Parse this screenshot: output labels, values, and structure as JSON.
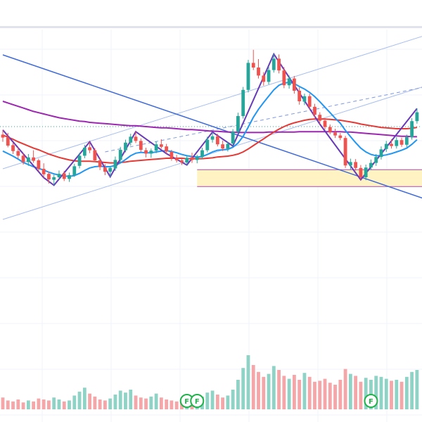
{
  "chart_data": {
    "type": "candlestick",
    "colors": {
      "up": "#26a69a",
      "down": "#ef5350",
      "vol_up": "#8fd3c6",
      "vol_down": "#f5a6a8",
      "ma_fast": "#2196f3",
      "ma_mid": "#e53935",
      "ma_slow": "#9c27b0",
      "zigzag": "#673ab7",
      "trend": "#3f6ad8",
      "channel": "#a8bef0",
      "zone_fill": "#fff3c4",
      "zone_border": "#a64ca6",
      "marker": "#22b24c"
    },
    "price_scale": [
      0,
      100
    ],
    "volume_scale": [
      0,
      100
    ],
    "price_reference_level": 70,
    "candles": [
      [
        68.1,
        69.2,
        66.4,
        67.4
      ],
      [
        67.4,
        68.5,
        65.1,
        65.5
      ],
      [
        65.6,
        66.2,
        63.5,
        64.2
      ],
      [
        64.2,
        65.1,
        62.4,
        63.1
      ],
      [
        63.1,
        63.7,
        61.0,
        61.6
      ],
      [
        61.6,
        63.5,
        60.7,
        62.7
      ],
      [
        62.7,
        64.4,
        61.4,
        61.9
      ],
      [
        62.0,
        62.4,
        59.4,
        60.0
      ],
      [
        60.0,
        61.3,
        57.9,
        58.7
      ],
      [
        58.8,
        59.3,
        56.5,
        57.5
      ],
      [
        57.4,
        58.6,
        56.1,
        58.0
      ],
      [
        58.0,
        59.6,
        57.5,
        58.8
      ],
      [
        58.9,
        59.5,
        57.1,
        57.6
      ],
      [
        57.6,
        59.1,
        56.9,
        58.5
      ],
      [
        58.5,
        61.2,
        58.1,
        60.6
      ],
      [
        60.7,
        63.8,
        60.1,
        63.1
      ],
      [
        63.1,
        65.7,
        62.5,
        65.0
      ],
      [
        65.1,
        66.4,
        63.7,
        64.4
      ],
      [
        64.4,
        64.9,
        61.6,
        62.0
      ],
      [
        62.0,
        62.6,
        59.7,
        60.4
      ],
      [
        60.3,
        61.1,
        58.5,
        59.3
      ],
      [
        59.3,
        60.6,
        58.1,
        60.2
      ],
      [
        60.1,
        62.9,
        59.5,
        62.1
      ],
      [
        62.1,
        65.2,
        61.4,
        64.5
      ],
      [
        64.4,
        66.9,
        63.9,
        66.2
      ],
      [
        66.2,
        68.3,
        65.5,
        67.6
      ],
      [
        67.6,
        68.8,
        66.1,
        66.6
      ],
      [
        66.6,
        67.2,
        64.0,
        64.5
      ],
      [
        64.4,
        65.0,
        62.7,
        63.6
      ],
      [
        63.6,
        64.8,
        62.6,
        64.3
      ],
      [
        64.3,
        66.5,
        63.7,
        65.8
      ],
      [
        65.8,
        67.0,
        64.8,
        65.2
      ],
      [
        65.3,
        65.9,
        63.6,
        64.1
      ],
      [
        64.0,
        64.5,
        61.9,
        62.6
      ],
      [
        62.6,
        63.3,
        61.5,
        62.0
      ],
      [
        62.0,
        62.5,
        60.9,
        61.5
      ],
      [
        61.5,
        63.2,
        60.9,
        62.6
      ],
      [
        62.7,
        63.8,
        61.4,
        62.1
      ],
      [
        62.1,
        63.3,
        61.3,
        62.8
      ],
      [
        62.8,
        65.0,
        62.3,
        64.4
      ],
      [
        64.4,
        67.6,
        63.9,
        66.9
      ],
      [
        66.9,
        68.7,
        66.2,
        67.7
      ],
      [
        67.7,
        68.3,
        65.3,
        65.8
      ],
      [
        65.8,
        66.7,
        64.2,
        64.8
      ],
      [
        64.8,
        66.4,
        64.1,
        65.9
      ],
      [
        66.0,
        69.4,
        65.4,
        68.8
      ],
      [
        68.8,
        73.3,
        68.2,
        72.5
      ],
      [
        72.5,
        79.4,
        71.9,
        78.7
      ],
      [
        78.7,
        85.8,
        78.1,
        85.1
      ],
      [
        85.1,
        88.2,
        83.4,
        84.0
      ],
      [
        84.0,
        86.0,
        81.4,
        82.1
      ],
      [
        82.1,
        82.9,
        79.7,
        80.6
      ],
      [
        80.6,
        84.2,
        80.0,
        83.4
      ],
      [
        83.4,
        87.2,
        82.8,
        86.1
      ],
      [
        86.1,
        87.1,
        82.6,
        83.3
      ],
      [
        83.3,
        84.1,
        79.1,
        79.8
      ],
      [
        79.8,
        82.1,
        79.0,
        81.4
      ],
      [
        81.4,
        82.0,
        77.8,
        78.5
      ],
      [
        78.5,
        79.3,
        75.2,
        76.0
      ],
      [
        75.9,
        77.8,
        75.1,
        77.2
      ],
      [
        77.2,
        77.8,
        74.0,
        74.7
      ],
      [
        74.7,
        75.4,
        72.1,
        72.8
      ],
      [
        72.8,
        73.4,
        70.6,
        71.4
      ],
      [
        71.4,
        72.0,
        69.3,
        69.9
      ],
      [
        69.9,
        70.5,
        68.2,
        68.7
      ],
      [
        68.6,
        69.5,
        67.3,
        67.9
      ],
      [
        67.9,
        68.5,
        66.8,
        67.3
      ],
      [
        67.3,
        67.8,
        60.2,
        60.8
      ],
      [
        60.8,
        62.4,
        59.8,
        61.6
      ],
      [
        61.6,
        62.3,
        59.6,
        60.2
      ],
      [
        60.2,
        60.9,
        57.4,
        58.0
      ],
      [
        58.0,
        61.0,
        57.3,
        60.3
      ],
      [
        60.3,
        62.2,
        59.7,
        61.4
      ],
      [
        61.4,
        63.5,
        60.7,
        62.8
      ],
      [
        62.8,
        65.3,
        62.2,
        64.6
      ],
      [
        64.7,
        66.6,
        64.0,
        65.9
      ],
      [
        65.9,
        67.0,
        64.8,
        65.4
      ],
      [
        65.4,
        67.5,
        64.8,
        66.8
      ],
      [
        66.8,
        67.4,
        65.2,
        65.7
      ],
      [
        65.7,
        68.1,
        65.1,
        67.5
      ],
      [
        67.5,
        72.0,
        66.9,
        71.3
      ],
      [
        71.3,
        74.3,
        70.7,
        73.4
      ]
    ],
    "volumes": [
      12,
      9,
      8,
      10,
      7,
      9,
      8,
      11,
      10,
      9,
      12,
      10,
      8,
      9,
      14,
      18,
      22,
      16,
      13,
      10,
      9,
      11,
      15,
      19,
      17,
      20,
      14,
      12,
      11,
      13,
      16,
      12,
      10,
      9,
      8,
      9,
      11,
      10,
      10,
      13,
      17,
      19,
      15,
      12,
      14,
      20,
      30,
      42,
      55,
      45,
      38,
      33,
      36,
      44,
      40,
      34,
      31,
      35,
      30,
      37,
      33,
      28,
      29,
      31,
      27,
      25,
      30,
      41,
      36,
      34,
      28,
      32,
      30,
      34,
      33,
      31,
      29,
      30,
      28,
      33,
      38,
      40
    ],
    "ma_fast": [
      64.2,
      63.6,
      63.0,
      62.3,
      61.5,
      61.0,
      60.5,
      60.1,
      59.7,
      59.2,
      58.8,
      58.5,
      58.3,
      58.2,
      58.4,
      58.9,
      59.6,
      60.2,
      60.5,
      60.6,
      60.5,
      60.5,
      60.8,
      61.4,
      62.2,
      63.1,
      63.7,
      63.9,
      63.8,
      63.8,
      64.0,
      64.2,
      64.3,
      64.1,
      63.8,
      63.4,
      63.1,
      62.9,
      62.8,
      62.9,
      63.4,
      64.0,
      64.4,
      64.5,
      64.6,
      65.1,
      66.1,
      67.7,
      69.9,
      72.2,
      74.1,
      75.7,
      77.2,
      78.7,
      79.8,
      80.3,
      80.5,
      80.2,
      79.5,
      78.9,
      78.1,
      77.1,
      75.9,
      74.6,
      73.3,
      72.0,
      70.8,
      69.1,
      67.6,
      66.2,
      64.9,
      64.0,
      63.4,
      63.1,
      63.1,
      63.3,
      63.6,
      64.0,
      64.4,
      64.9,
      65.8,
      66.9
    ],
    "ma_mid": [
      68.0,
      67.5,
      67.0,
      66.4,
      65.9,
      65.4,
      64.9,
      64.5,
      64.0,
      63.5,
      63.1,
      62.7,
      62.4,
      62.1,
      61.9,
      61.8,
      61.8,
      61.8,
      61.7,
      61.6,
      61.5,
      61.4,
      61.4,
      61.5,
      61.6,
      61.8,
      61.9,
      62.0,
      62.1,
      62.2,
      62.3,
      62.4,
      62.5,
      62.5,
      62.5,
      62.5,
      62.4,
      62.4,
      62.4,
      62.4,
      62.5,
      62.6,
      62.8,
      62.9,
      63.0,
      63.2,
      63.5,
      64.0,
      64.7,
      65.5,
      66.3,
      67.1,
      67.9,
      68.7,
      69.4,
      70.0,
      70.5,
      70.9,
      71.2,
      71.5,
      71.7,
      71.8,
      71.8,
      71.8,
      71.7,
      71.6,
      71.5,
      71.3,
      71.1,
      70.9,
      70.6,
      70.4,
      70.2,
      70.0,
      69.8,
      69.7,
      69.6,
      69.5,
      69.5,
      69.5,
      69.6,
      69.8
    ],
    "ma_slow": [
      76.0,
      75.6,
      75.2,
      74.8,
      74.4,
      74.0,
      73.6,
      73.3,
      73.0,
      72.7,
      72.4,
      72.1,
      71.9,
      71.7,
      71.5,
      71.3,
      71.2,
      71.0,
      70.9,
      70.8,
      70.7,
      70.6,
      70.5,
      70.4,
      70.3,
      70.2,
      70.2,
      70.1,
      70.0,
      69.9,
      69.8,
      69.7,
      69.7,
      69.6,
      69.5,
      69.4,
      69.3,
      69.3,
      69.2,
      69.1,
      69.0,
      68.9,
      68.9,
      68.8,
      68.7,
      68.7,
      68.6,
      68.6,
      68.6,
      68.6,
      68.6,
      68.6,
      68.7,
      68.7,
      68.7,
      68.7,
      68.7,
      68.7,
      68.8,
      68.8,
      68.8,
      68.8,
      68.8,
      68.8,
      68.8,
      68.8,
      68.8,
      68.7,
      68.7,
      68.6,
      68.5,
      68.4,
      68.3,
      68.2,
      68.1,
      68.0,
      67.9,
      67.8,
      67.7,
      67.7,
      67.6,
      67.6
    ],
    "zigzag": [
      [
        0,
        69.2
      ],
      [
        8,
        57.9
      ],
      [
        10,
        56.1
      ],
      [
        17,
        66.4
      ],
      [
        21,
        58.1
      ],
      [
        26,
        68.8
      ],
      [
        32,
        63.6
      ],
      [
        36,
        60.9
      ],
      [
        41,
        68.7
      ],
      [
        45,
        65.4
      ],
      [
        53,
        87.2
      ],
      [
        62,
        70.6
      ],
      [
        70,
        57.4
      ],
      [
        81,
        74.3
      ]
    ],
    "trendline": [
      [
        0,
        87.0
      ],
      [
        81,
        53.5
      ]
    ],
    "channel_lower": [
      [
        0,
        48.0
      ],
      [
        81,
        79.0
      ]
    ],
    "channel_upper": [
      [
        0,
        60.0
      ],
      [
        81,
        91.0
      ]
    ],
    "dashed_line": [
      [
        20,
        64.0
      ],
      [
        81,
        79.0
      ]
    ],
    "zone": {
      "from": 38,
      "to": 81,
      "low": 55.8,
      "high": 59.8
    },
    "markers": [
      {
        "index": 36,
        "label": "F"
      },
      {
        "index": 38,
        "label": "F"
      },
      {
        "index": 72,
        "label": "F"
      }
    ]
  }
}
